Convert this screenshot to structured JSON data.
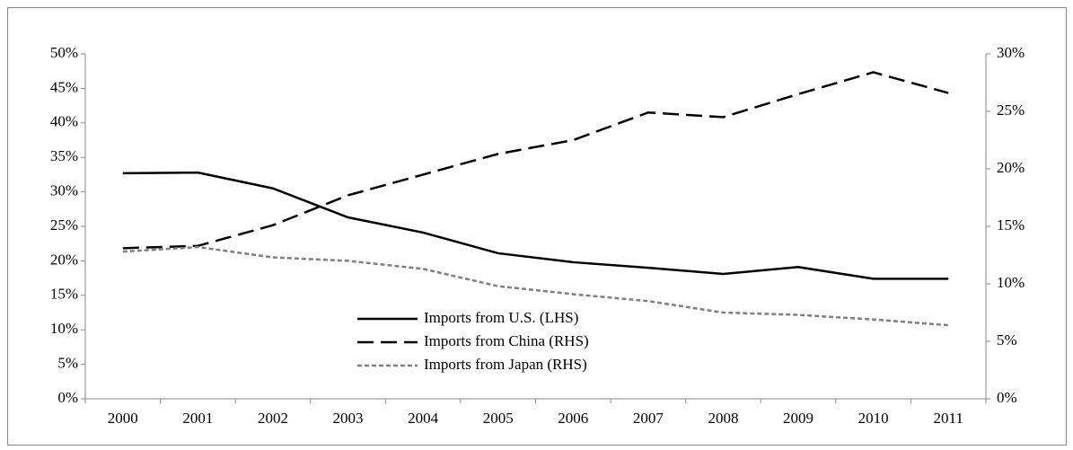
{
  "chart_data": {
    "type": "line",
    "categories": [
      "2000",
      "2001",
      "2002",
      "2003",
      "2004",
      "2005",
      "2006",
      "2007",
      "2008",
      "2009",
      "2010",
      "2011"
    ],
    "series": [
      {
        "name": "Imports from U.S. (LHS)",
        "color": "#000000",
        "dash": "solid",
        "axis": "y",
        "values": [
          32.7,
          32.8,
          30.5,
          26.3,
          24.1,
          21.1,
          19.8,
          19.0,
          18.1,
          19.1,
          17.4,
          17.4
        ]
      },
      {
        "name": "Imports from China (RHS)",
        "color": "#000000",
        "dash": "long-dash",
        "axis": "y2",
        "values": [
          13.1,
          13.3,
          15.1,
          17.7,
          19.5,
          21.3,
          22.5,
          24.9,
          24.5,
          26.5,
          28.4,
          26.6
        ]
      },
      {
        "name": "Imports from Japan (RHS)",
        "color": "#808080",
        "dash": "short-dash",
        "axis": "y2",
        "values": [
          12.8,
          13.2,
          12.3,
          12.0,
          11.3,
          9.8,
          9.1,
          8.5,
          7.5,
          7.3,
          6.9,
          6.4
        ]
      }
    ],
    "ylim": [
      0,
      50
    ],
    "yticks": [
      {
        "value": 0,
        "label": "0%"
      },
      {
        "value": 5,
        "label": "5%"
      },
      {
        "value": 10,
        "label": "10%"
      },
      {
        "value": 15,
        "label": "15%"
      },
      {
        "value": 20,
        "label": "20%"
      },
      {
        "value": 25,
        "label": "25%"
      },
      {
        "value": 30,
        "label": "30%"
      },
      {
        "value": 35,
        "label": "35%"
      },
      {
        "value": 40,
        "label": "40%"
      },
      {
        "value": 45,
        "label": "45%"
      },
      {
        "value": 50,
        "label": "50%"
      }
    ],
    "y2lim": [
      0,
      30
    ],
    "y2ticks": [
      {
        "value": 0,
        "label": "0%"
      },
      {
        "value": 5,
        "label": "5%"
      },
      {
        "value": 10,
        "label": "10%"
      },
      {
        "value": 15,
        "label": "15%"
      },
      {
        "value": 20,
        "label": "20%"
      },
      {
        "value": 25,
        "label": "25%"
      },
      {
        "value": 30,
        "label": "30%"
      }
    ],
    "grid": false,
    "legend": "lower center"
  }
}
